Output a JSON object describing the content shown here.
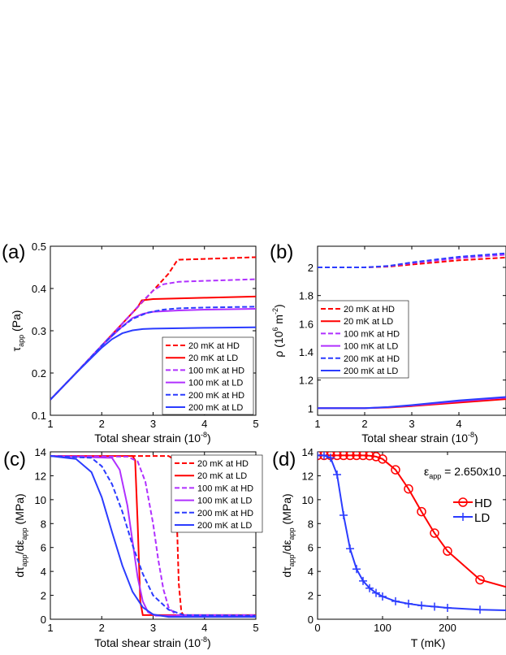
{
  "figure_labels": {
    "a": "(a)",
    "b": "(b)",
    "c": "(c)",
    "d": "(d)"
  },
  "legend_labels": [
    "20 mK at HD",
    "20 mK at LD",
    "100 mK at HD",
    "100 mK at LD",
    "200 mK at HD",
    "200 mK at LD"
  ],
  "colors": {
    "red": "#ff0000",
    "purple": "#b030ff",
    "blue": "#2b3cff"
  },
  "chart_data": [
    {
      "id": "a",
      "type": "line",
      "xlabel_main": "Total shear strain (10",
      "xlabel_sup": "-8",
      "xlabel_end": ")",
      "ylabel_main": "τ",
      "ylabel_sub": "app",
      "ylabel_end": " (Pa)",
      "xlim": [
        1,
        5
      ],
      "ylim": [
        0.1,
        0.5
      ],
      "xticks": [
        1,
        2,
        3,
        4,
        5
      ],
      "yticks": [
        0.1,
        0.2,
        0.3,
        0.4,
        0.5
      ],
      "series": [
        {
          "name": "20 mK at HD",
          "color": "#ff0000",
          "dash": true,
          "x": [
            1,
            1.5,
            2,
            2.5,
            3,
            3.3,
            3.45,
            3.5,
            4,
            4.5,
            5
          ],
          "y": [
            0.137,
            0.2,
            0.265,
            0.33,
            0.395,
            0.435,
            0.463,
            0.468,
            0.47,
            0.472,
            0.474
          ]
        },
        {
          "name": "20 mK at LD",
          "color": "#ff0000",
          "dash": false,
          "x": [
            1,
            1.5,
            2,
            2.5,
            2.7,
            2.78,
            3,
            4,
            5
          ],
          "y": [
            0.137,
            0.2,
            0.265,
            0.33,
            0.356,
            0.372,
            0.375,
            0.378,
            0.381
          ]
        },
        {
          "name": "100 mK at HD",
          "color": "#b030ff",
          "dash": true,
          "x": [
            1,
            1.5,
            2,
            2.5,
            2.8,
            3,
            3.2,
            3.5,
            4,
            4.5,
            5
          ],
          "y": [
            0.137,
            0.2,
            0.265,
            0.33,
            0.37,
            0.395,
            0.41,
            0.416,
            0.418,
            0.42,
            0.422
          ]
        },
        {
          "name": "100 mK at LD",
          "color": "#b030ff",
          "dash": false,
          "x": [
            1,
            1.5,
            2,
            2.4,
            2.6,
            2.8,
            3,
            3.5,
            4,
            5
          ],
          "y": [
            0.137,
            0.2,
            0.265,
            0.31,
            0.33,
            0.34,
            0.345,
            0.348,
            0.35,
            0.352
          ]
        },
        {
          "name": "200 mK at HD",
          "color": "#2b3cff",
          "dash": true,
          "x": [
            1,
            1.5,
            2,
            2.3,
            2.6,
            2.9,
            3.2,
            3.5,
            4,
            5
          ],
          "y": [
            0.137,
            0.2,
            0.265,
            0.3,
            0.328,
            0.343,
            0.35,
            0.353,
            0.355,
            0.357
          ]
        },
        {
          "name": "200 mK at LD",
          "color": "#2b3cff",
          "dash": false,
          "x": [
            1,
            1.5,
            2,
            2.2,
            2.4,
            2.6,
            2.8,
            3,
            3.5,
            4,
            5
          ],
          "y": [
            0.137,
            0.2,
            0.26,
            0.28,
            0.294,
            0.301,
            0.304,
            0.305,
            0.306,
            0.307,
            0.308
          ]
        }
      ]
    },
    {
      "id": "b",
      "type": "line",
      "xlabel_main": "Total shear strain (10",
      "xlabel_sup": "-8",
      "xlabel_end": ")",
      "ylabel_main": "ρ (10",
      "ylabel_sup": "6",
      "ylabel_mid": " m",
      "ylabel_sup2": "-2",
      "ylabel_end": ")",
      "xlim": [
        1,
        5
      ],
      "ylim": [
        0.95,
        2.15
      ],
      "xticks": [
        1,
        2,
        3,
        4
      ],
      "yticks": [
        1,
        1.2,
        1.4,
        1.6,
        1.8,
        2
      ],
      "series": [
        {
          "name": "20 mK at HD",
          "color": "#ff0000",
          "dash": true,
          "x": [
            1,
            2,
            2.5,
            3,
            4,
            5
          ],
          "y": [
            2,
            2,
            2.005,
            2.02,
            2.05,
            2.07
          ]
        },
        {
          "name": "20 mK at LD",
          "color": "#ff0000",
          "dash": false,
          "x": [
            1,
            2,
            2.5,
            3,
            4,
            5
          ],
          "y": [
            1,
            1,
            1.005,
            1.015,
            1.04,
            1.065
          ]
        },
        {
          "name": "100 mK at HD",
          "color": "#b030ff",
          "dash": true,
          "x": [
            1,
            2,
            2.5,
            3,
            4,
            5
          ],
          "y": [
            2,
            2,
            2.008,
            2.03,
            2.065,
            2.09
          ]
        },
        {
          "name": "100 mK at LD",
          "color": "#b030ff",
          "dash": false,
          "x": [
            1,
            2,
            2.5,
            3,
            4,
            5
          ],
          "y": [
            1,
            1,
            1.007,
            1.02,
            1.05,
            1.075
          ]
        },
        {
          "name": "200 mK at HD",
          "color": "#2b3cff",
          "dash": true,
          "x": [
            1,
            2,
            2.5,
            3,
            4,
            5
          ],
          "y": [
            2,
            2,
            2.01,
            2.035,
            2.075,
            2.1
          ]
        },
        {
          "name": "200 mK at LD",
          "color": "#2b3cff",
          "dash": false,
          "x": [
            1,
            2,
            2.5,
            3,
            4,
            5
          ],
          "y": [
            1,
            1,
            1.008,
            1.022,
            1.055,
            1.08
          ]
        }
      ]
    },
    {
      "id": "c",
      "type": "line",
      "xlabel_main": "Total shear strain (10",
      "xlabel_sup": "-8",
      "xlabel_end": ")",
      "ylabel_d": "dτ",
      "ylabel_sub1": "app",
      "ylabel_slash": "/dε",
      "ylabel_sub2": "app",
      "ylabel_end": " (MPa)",
      "xlim": [
        1,
        5
      ],
      "ylim": [
        0,
        14
      ],
      "xticks": [
        1,
        2,
        3,
        4,
        5
      ],
      "yticks": [
        0,
        2,
        4,
        6,
        8,
        10,
        12,
        14
      ],
      "series": [
        {
          "name": "20 mK at HD",
          "color": "#ff0000",
          "dash": true,
          "x": [
            1,
            3.3,
            3.4,
            3.45,
            3.5,
            3.55,
            3.6,
            5
          ],
          "y": [
            13.65,
            13.65,
            13.4,
            10,
            3,
            0.6,
            0.3,
            0.3
          ]
        },
        {
          "name": "20 mK at LD",
          "color": "#ff0000",
          "dash": false,
          "x": [
            1,
            2.6,
            2.65,
            2.7,
            2.75,
            2.8,
            5
          ],
          "y": [
            13.65,
            13.65,
            13.3,
            8,
            1.5,
            0.35,
            0.35
          ]
        },
        {
          "name": "100 mK at HD",
          "color": "#b030ff",
          "dash": true,
          "x": [
            1,
            2.5,
            2.7,
            2.85,
            3.0,
            3.1,
            3.2,
            3.3,
            3.45,
            5
          ],
          "y": [
            13.65,
            13.6,
            13.2,
            11.5,
            8,
            5,
            2.5,
            1,
            0.35,
            0.35
          ]
        },
        {
          "name": "100 mK at LD",
          "color": "#b030ff",
          "dash": false,
          "x": [
            1,
            2.2,
            2.35,
            2.5,
            2.6,
            2.7,
            2.8,
            2.9,
            3.05,
            5
          ],
          "y": [
            13.65,
            13.5,
            12.5,
            9.5,
            6.5,
            3.5,
            1.5,
            0.6,
            0.3,
            0.3
          ]
        },
        {
          "name": "200 mK at HD",
          "color": "#2b3cff",
          "dash": true,
          "x": [
            1,
            1.8,
            2,
            2.2,
            2.4,
            2.6,
            2.8,
            3.0,
            3.3,
            3.6,
            5
          ],
          "y": [
            13.65,
            13.5,
            12.8,
            11.3,
            9,
            6.2,
            3.8,
            2,
            0.8,
            0.35,
            0.3
          ]
        },
        {
          "name": "200 mK at LD",
          "color": "#2b3cff",
          "dash": false,
          "x": [
            1,
            1.5,
            1.8,
            2.0,
            2.2,
            2.4,
            2.6,
            2.8,
            3.0,
            3.3,
            5
          ],
          "y": [
            13.65,
            13.4,
            12.3,
            10.2,
            7.3,
            4.5,
            2.3,
            1,
            0.4,
            0.2,
            0.2
          ]
        }
      ]
    },
    {
      "id": "d",
      "type": "line",
      "xlabel_main": "T (mK)",
      "ylabel_d": "dτ",
      "ylabel_sub1": "app",
      "ylabel_slash": "/dε",
      "ylabel_sub2": "app",
      "ylabel_end": " (MPa)",
      "annotation_main": "ε",
      "annotation_sub": "app",
      "annotation_end": " = 2.650x10",
      "xlim": [
        0,
        290
      ],
      "ylim": [
        0,
        14
      ],
      "xticks": [
        0,
        100,
        200
      ],
      "yticks": [
        0,
        2,
        4,
        6,
        8,
        10,
        12,
        14
      ],
      "legend": [
        "HD",
        "LD"
      ],
      "series": [
        {
          "name": "HD",
          "color": "#ff0000",
          "marker": "circle",
          "x": [
            0,
            10,
            20,
            30,
            40,
            50,
            60,
            70,
            80,
            90,
            100,
            120,
            140,
            160,
            180,
            200,
            250,
            290
          ],
          "y": [
            13.7,
            13.7,
            13.7,
            13.7,
            13.7,
            13.7,
            13.7,
            13.7,
            13.68,
            13.6,
            13.4,
            12.5,
            10.9,
            9.0,
            7.2,
            5.7,
            3.3,
            2.7
          ],
          "markers_x": [
            0,
            10,
            20,
            30,
            40,
            50,
            60,
            70,
            80,
            90,
            100,
            120,
            140,
            160,
            180,
            200,
            250
          ],
          "markers_y": [
            13.7,
            13.7,
            13.7,
            13.7,
            13.7,
            13.7,
            13.7,
            13.7,
            13.68,
            13.6,
            13.4,
            12.5,
            10.9,
            9.0,
            7.2,
            5.7,
            3.3
          ]
        },
        {
          "name": "LD",
          "color": "#2b3cff",
          "marker": "plus",
          "x": [
            0,
            10,
            20,
            30,
            40,
            50,
            60,
            70,
            80,
            90,
            100,
            120,
            140,
            160,
            180,
            200,
            250,
            290
          ],
          "y": [
            13.7,
            13.7,
            13.5,
            12.1,
            8.7,
            5.9,
            4.2,
            3.2,
            2.6,
            2.2,
            1.9,
            1.5,
            1.3,
            1.15,
            1.05,
            0.95,
            0.8,
            0.75
          ],
          "markers_x": [
            0,
            10,
            20,
            30,
            40,
            50,
            60,
            70,
            80,
            90,
            100,
            120,
            140,
            160,
            180,
            200,
            250
          ],
          "markers_y": [
            13.7,
            13.7,
            13.5,
            12.1,
            8.7,
            5.9,
            4.2,
            3.2,
            2.6,
            2.2,
            1.9,
            1.5,
            1.3,
            1.15,
            1.05,
            0.95,
            0.8
          ]
        }
      ]
    }
  ]
}
